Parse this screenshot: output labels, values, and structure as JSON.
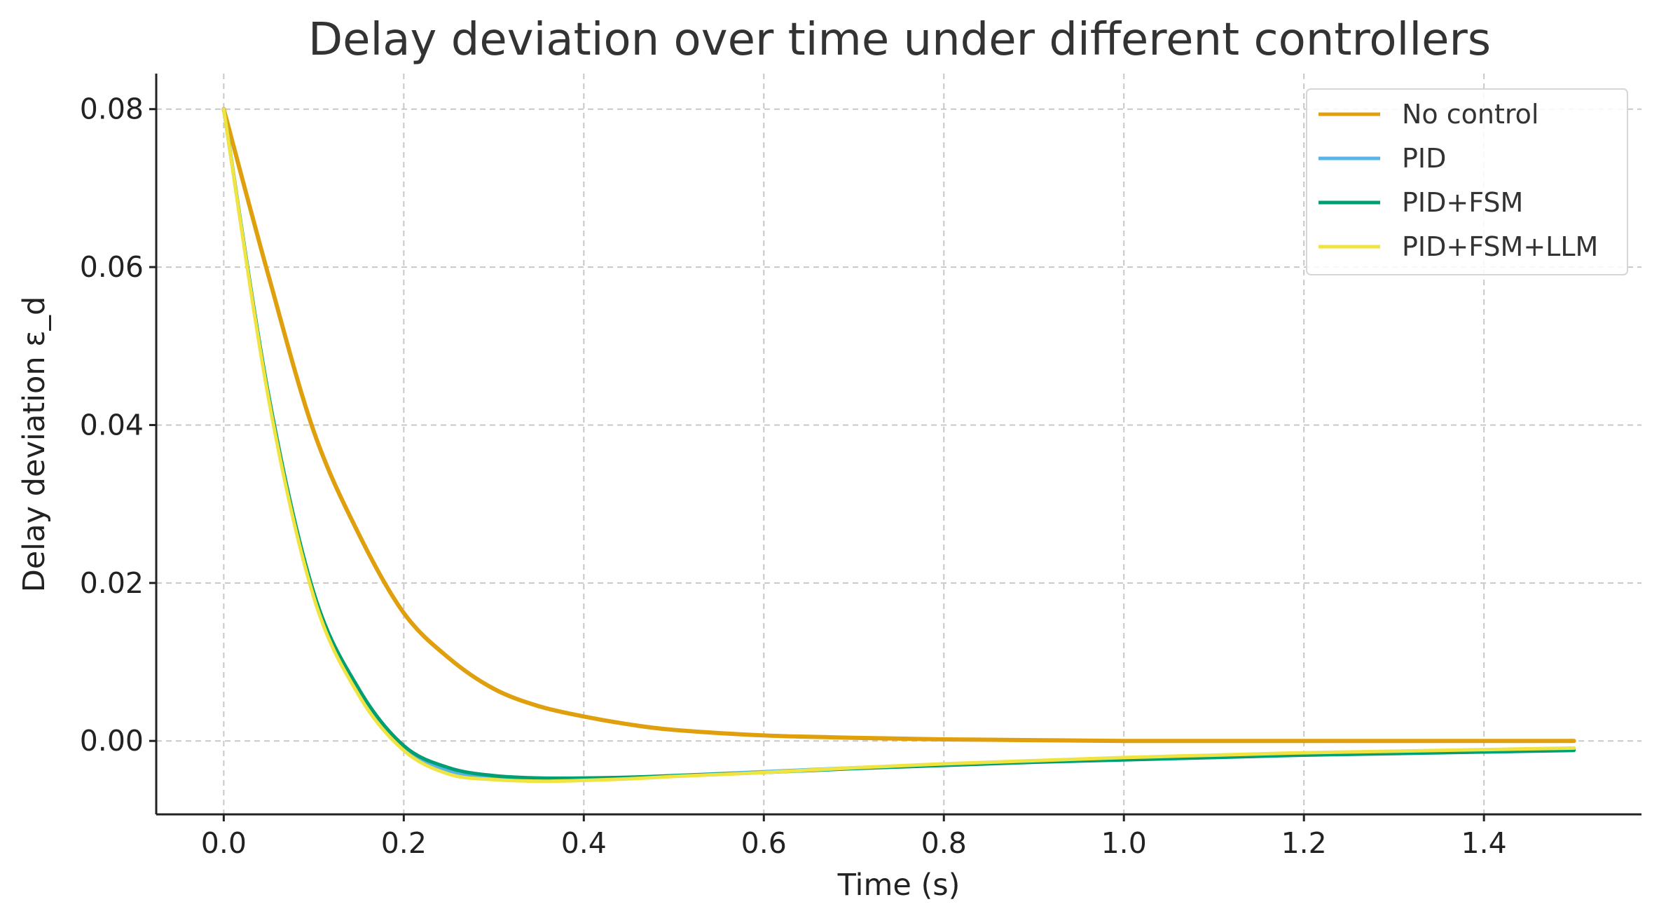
{
  "chart_data": {
    "type": "line",
    "title": "Delay deviation over time under different controllers",
    "xlabel": "Time (s)",
    "ylabel": "Delay deviation ε_d",
    "xlim": [
      -0.075,
      1.575
    ],
    "ylim": [
      -0.0093,
      0.0845
    ],
    "xticks": [
      0.0,
      0.2,
      0.4,
      0.6,
      0.8,
      1.0,
      1.2,
      1.4
    ],
    "xtick_labels": [
      "0.0",
      "0.2",
      "0.4",
      "0.6",
      "0.8",
      "1.0",
      "1.2",
      "1.4"
    ],
    "yticks": [
      0.0,
      0.02,
      0.04,
      0.06,
      0.08
    ],
    "ytick_labels": [
      "0.00",
      "0.02",
      "0.04",
      "0.06",
      "0.08"
    ],
    "grid": true,
    "legend_position": "top-right",
    "x": [
      0.0,
      0.05,
      0.1,
      0.15,
      0.2,
      0.25,
      0.3,
      0.35,
      0.4,
      0.45,
      0.5,
      0.6,
      0.7,
      0.8,
      0.9,
      1.0,
      1.1,
      1.2,
      1.3,
      1.4,
      1.5
    ],
    "series": [
      {
        "name": "No control",
        "color": "#e09f0c",
        "width": 6,
        "values": [
          0.08,
          0.0588,
          0.0392,
          0.0262,
          0.0162,
          0.0105,
          0.0066,
          0.0044,
          0.0031,
          0.0021,
          0.0014,
          0.0007,
          0.0004,
          0.0002,
          0.0001,
          0.0,
          0.0,
          0.0,
          0.0,
          0.0,
          0.0
        ]
      },
      {
        "name": "PID",
        "color": "#56b4e9",
        "width": 5,
        "values": [
          0.08,
          0.0435,
          0.0185,
          0.0062,
          -0.0008,
          -0.0038,
          -0.0047,
          -0.0049,
          -0.0048,
          -0.0047,
          -0.0044,
          -0.0039,
          -0.0034,
          -0.003,
          -0.0026,
          -0.0022,
          -0.0019,
          -0.0016,
          -0.0014,
          -0.0012,
          -0.001
        ]
      },
      {
        "name": "PID+FSM",
        "color": "#009e73",
        "width": 5,
        "values": [
          0.08,
          0.0437,
          0.0188,
          0.0066,
          -0.0006,
          -0.0034,
          -0.0044,
          -0.0047,
          -0.0047,
          -0.0046,
          -0.0044,
          -0.004,
          -0.0035,
          -0.0031,
          -0.0027,
          -0.0024,
          -0.0021,
          -0.0018,
          -0.0016,
          -0.0014,
          -0.0012
        ]
      },
      {
        "name": "PID+FSM+LLM",
        "color": "#f0e442",
        "width": 5,
        "values": [
          0.08,
          0.0432,
          0.0182,
          0.0058,
          -0.0012,
          -0.0042,
          -0.0049,
          -0.0051,
          -0.005,
          -0.0048,
          -0.0045,
          -0.004,
          -0.0034,
          -0.0029,
          -0.0025,
          -0.0021,
          -0.0018,
          -0.0015,
          -0.0013,
          -0.0011,
          -0.0009
        ]
      }
    ]
  }
}
